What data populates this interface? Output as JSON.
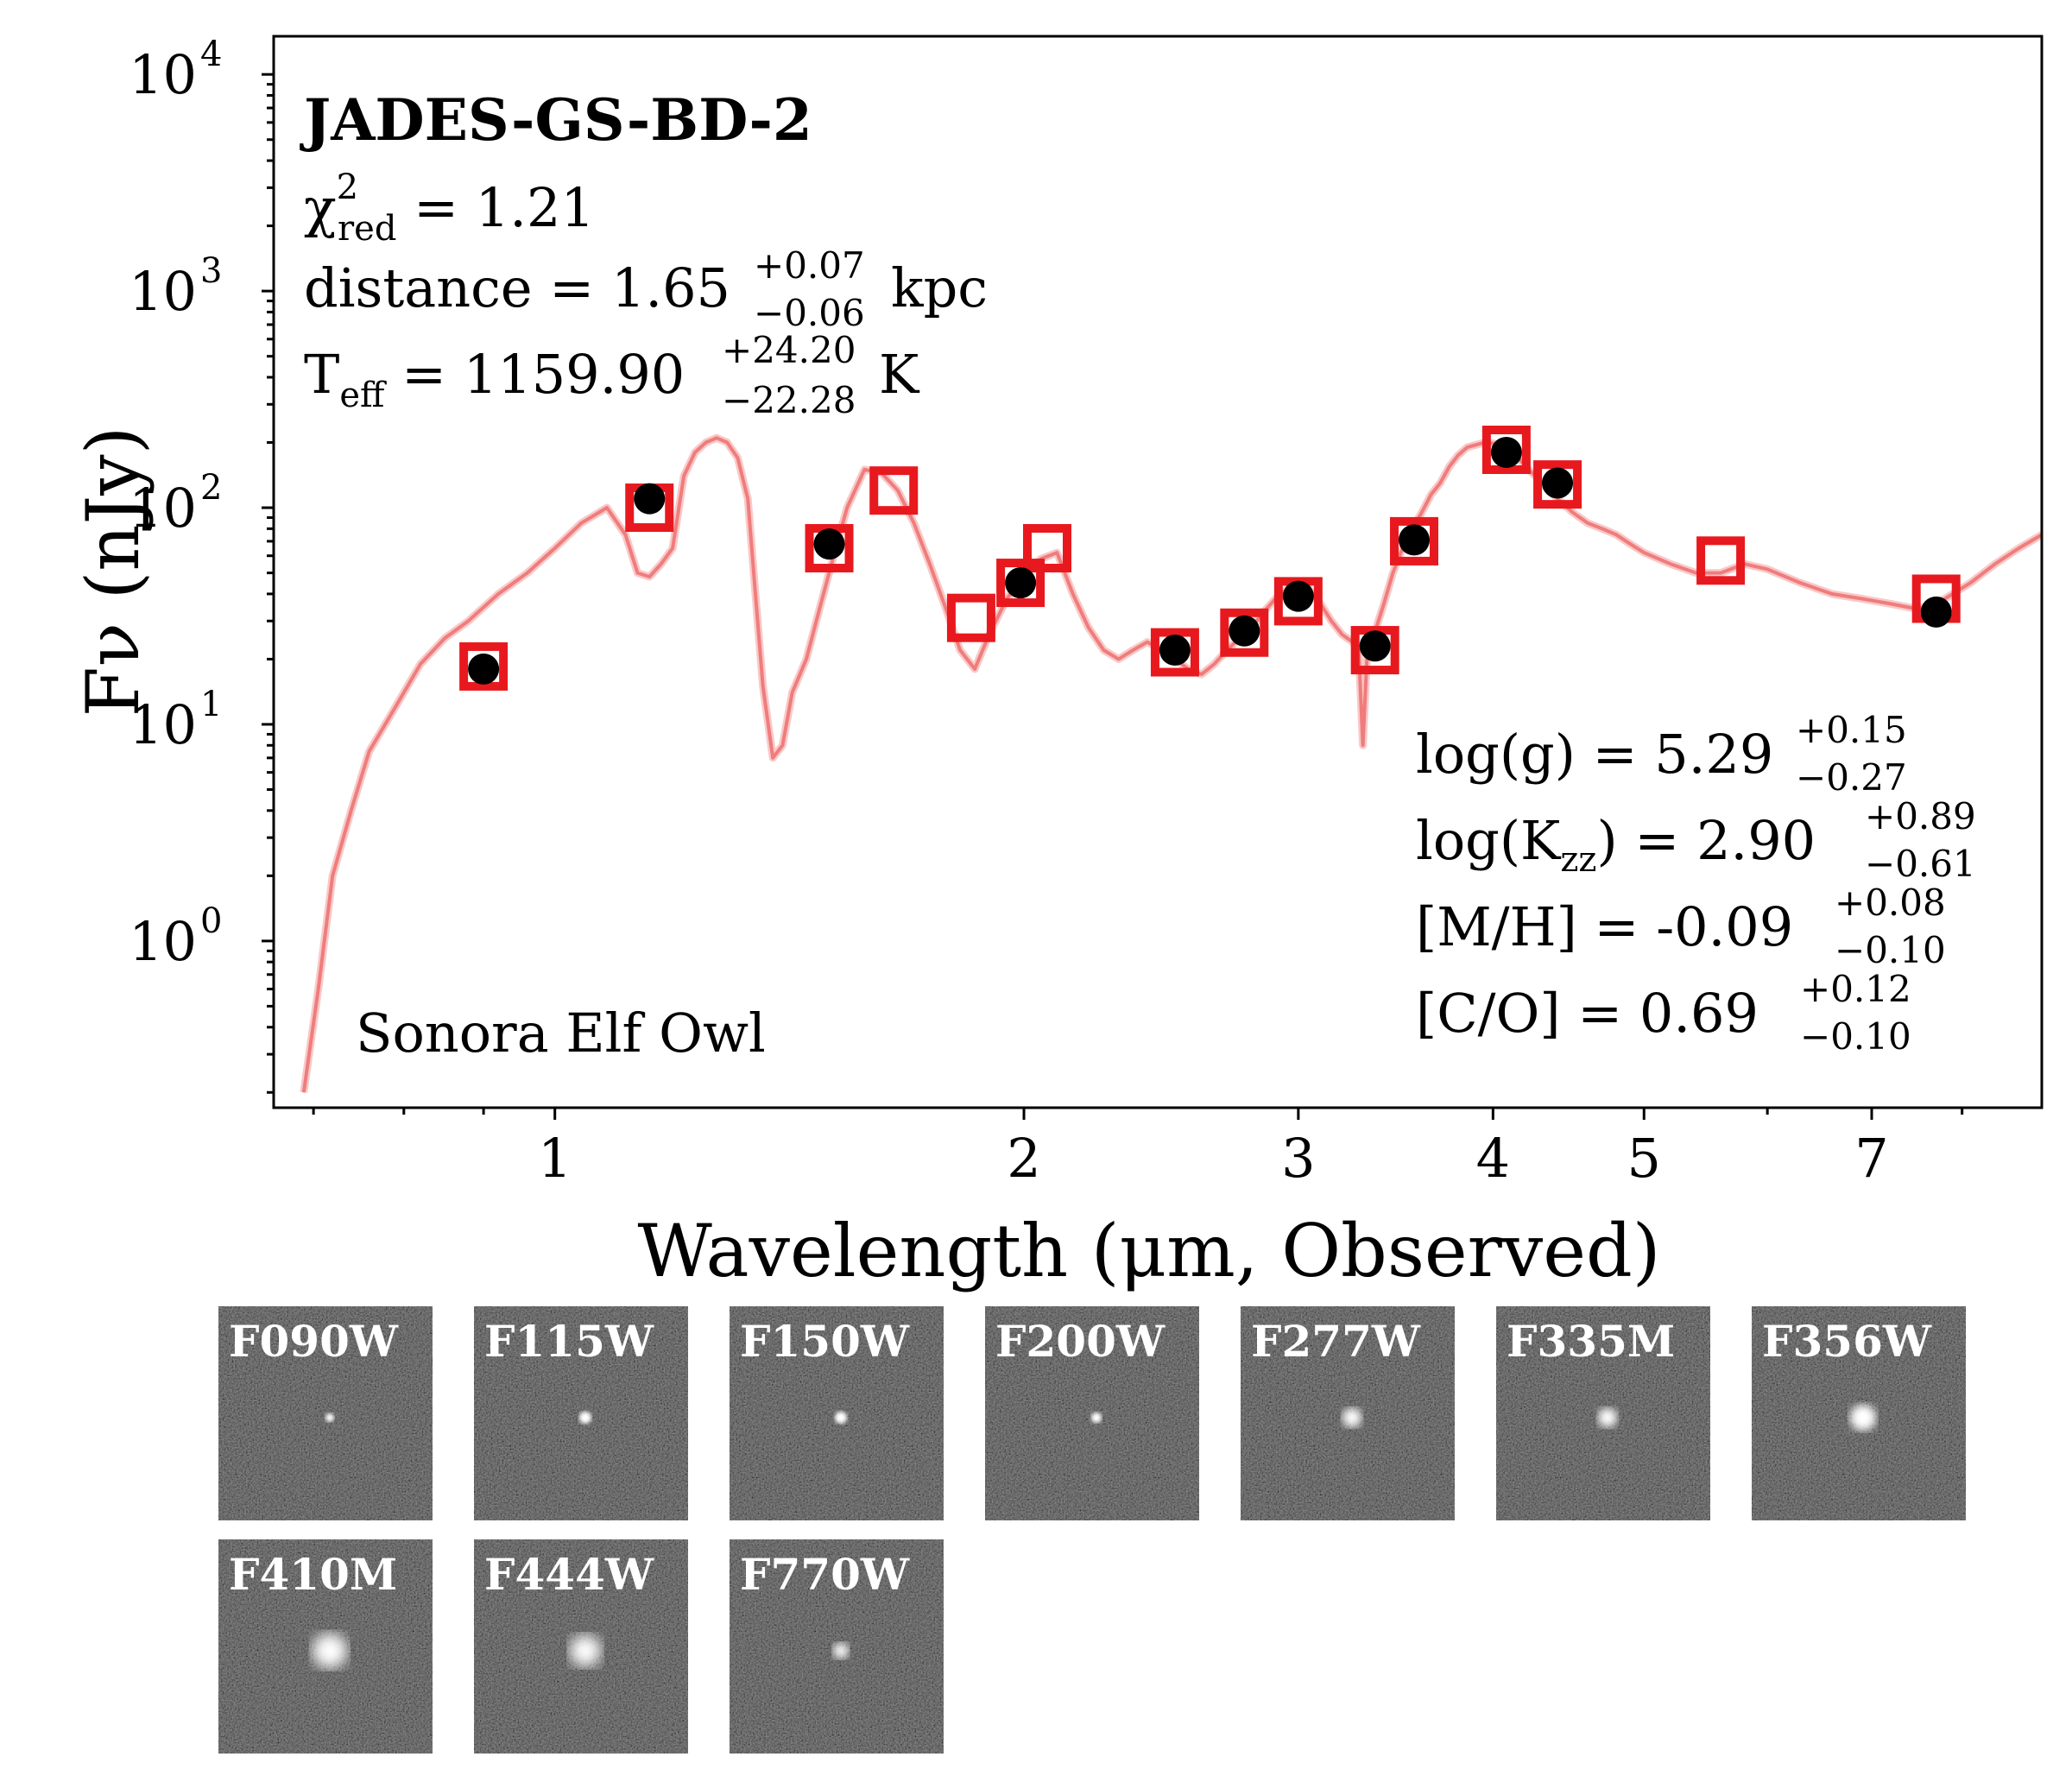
{
  "chart_data": {
    "type": "scatter",
    "title": "JADES-GS-BD-2",
    "xlabel": "Wavelength (μm, Observed)",
    "ylabel": "Fν (nJy)",
    "xscale": "log",
    "yscale": "log",
    "xlim": [
      0.66,
      9.0
    ],
    "ylim": [
      0.17,
      15000
    ],
    "x_ticks": [
      1,
      2,
      3,
      4,
      5,
      7
    ],
    "x_tick_labels": [
      "1",
      "2",
      "3",
      "4",
      "5",
      "7"
    ],
    "y_ticks": [
      1,
      10,
      100,
      1000,
      10000
    ],
    "y_tick_labels": [
      {
        "base": "10",
        "exp": "0"
      },
      {
        "base": "10",
        "exp": "1"
      },
      {
        "base": "10",
        "exp": "2"
      },
      {
        "base": "10",
        "exp": "3"
      },
      {
        "base": "10",
        "exp": "4"
      }
    ],
    "annotations": {
      "chi2": {
        "symbol": "χ",
        "sup": "2",
        "sub": "red",
        "rest": " = 1.21"
      },
      "distance": {
        "label": "distance = ",
        "value": "1.65",
        "plus": "+0.07",
        "minus": "−0.06",
        "unit": " kpc"
      },
      "teff": {
        "label": "T",
        "sub": "eff",
        "eq": " = ",
        "value": "1159.90",
        "plus": "+24.20",
        "minus": "−22.28",
        "unit": " K"
      },
      "logg": {
        "label": "log(g) = ",
        "value": "5.29",
        "plus": "+0.15",
        "minus": "−0.27"
      },
      "logkzz": {
        "label": "log(K",
        "sub": "zz",
        "close": ") = ",
        "value": "2.90",
        "plus": "+0.89",
        "minus": "−0.61"
      },
      "mh": {
        "label": "[M/H] = ",
        "value": "-0.09",
        "plus": "+0.08",
        "minus": "−0.10"
      },
      "co": {
        "label": "[C/O] = ",
        "value": "0.69",
        "plus": "+0.12",
        "minus": "−0.10"
      },
      "model": "Sonora Elf Owl"
    },
    "series": [
      {
        "name": "model spectrum",
        "color": "#f08080",
        "x": [
          0.69,
          0.705,
          0.72,
          0.74,
          0.76,
          0.79,
          0.82,
          0.85,
          0.88,
          0.92,
          0.96,
          1.0,
          1.04,
          1.08,
          1.11,
          1.13,
          1.15,
          1.17,
          1.19,
          1.21,
          1.23,
          1.25,
          1.27,
          1.29,
          1.31,
          1.33,
          1.345,
          1.36,
          1.38,
          1.4,
          1.42,
          1.45,
          1.48,
          1.51,
          1.54,
          1.58,
          1.62,
          1.66,
          1.7,
          1.74,
          1.78,
          1.82,
          1.86,
          1.9,
          1.95,
          2.0,
          2.05,
          2.1,
          2.15,
          2.2,
          2.25,
          2.3,
          2.35,
          2.4,
          2.45,
          2.5,
          2.55,
          2.6,
          2.65,
          2.7,
          2.75,
          2.8,
          2.85,
          2.9,
          2.95,
          3.0,
          3.05,
          3.1,
          3.15,
          3.2,
          3.25,
          3.28,
          3.3,
          3.32,
          3.35,
          3.4,
          3.45,
          3.5,
          3.55,
          3.6,
          3.65,
          3.7,
          3.75,
          3.8,
          3.85,
          3.9,
          3.95,
          4.0,
          4.05,
          4.1,
          4.15,
          4.2,
          4.3,
          4.4,
          4.5,
          4.6,
          4.7,
          4.8,
          4.9,
          5.0,
          5.2,
          5.4,
          5.6,
          5.8,
          6.0,
          6.3,
          6.6,
          6.9,
          7.2,
          7.5,
          7.8,
          8.1,
          8.4,
          8.7,
          9.0
        ],
        "y": [
          0.2,
          0.6,
          2.0,
          4.0,
          7.5,
          12,
          19,
          25,
          30,
          40,
          50,
          65,
          85,
          100,
          75,
          50,
          48,
          55,
          65,
          140,
          180,
          200,
          210,
          200,
          170,
          110,
          40,
          15,
          7,
          8,
          14,
          20,
          35,
          60,
          100,
          150,
          145,
          120,
          85,
          55,
          35,
          22,
          18,
          26,
          38,
          48,
          58,
          62,
          40,
          28,
          22,
          20,
          22,
          24,
          22,
          20,
          18,
          17,
          19,
          22,
          25,
          28,
          33,
          38,
          42,
          45,
          42,
          36,
          30,
          26,
          24,
          22,
          8,
          20,
          25,
          35,
          50,
          65,
          80,
          95,
          115,
          130,
          155,
          175,
          190,
          195,
          200,
          198,
          195,
          185,
          170,
          155,
          130,
          110,
          95,
          85,
          80,
          75,
          68,
          62,
          55,
          50,
          50,
          55,
          52,
          45,
          40,
          38,
          36,
          34,
          38,
          45,
          55,
          65,
          75
        ]
      },
      {
        "name": "model photometry",
        "marker": "open-square",
        "color": "#e8191e",
        "x": [
          0.9,
          1.15,
          1.5,
          1.65,
          1.85,
          1.99,
          2.07,
          2.5,
          2.77,
          3.0,
          3.36,
          3.56,
          4.08,
          4.4,
          5.6,
          7.7
        ],
        "y": [
          18.5,
          100,
          65,
          120,
          31,
          45,
          65,
          21.5,
          26.5,
          37,
          22,
          70,
          185,
          128,
          57,
          38
        ]
      },
      {
        "name": "observed photometry",
        "marker": "filled-circle",
        "color": "#000000",
        "x": [
          0.9,
          1.15,
          1.5,
          1.99,
          2.5,
          2.77,
          3.0,
          3.36,
          3.56,
          4.08,
          4.4,
          7.7
        ],
        "y": [
          18,
          110,
          68,
          45,
          22,
          27,
          39,
          23,
          71,
          180,
          130,
          33
        ]
      }
    ]
  },
  "cutouts": {
    "rows": [
      [
        "F090W",
        "F115W",
        "F150W",
        "F200W",
        "F277W",
        "F335M",
        "F356W"
      ],
      [
        "F410M",
        "F444W",
        "F770W"
      ]
    ]
  }
}
